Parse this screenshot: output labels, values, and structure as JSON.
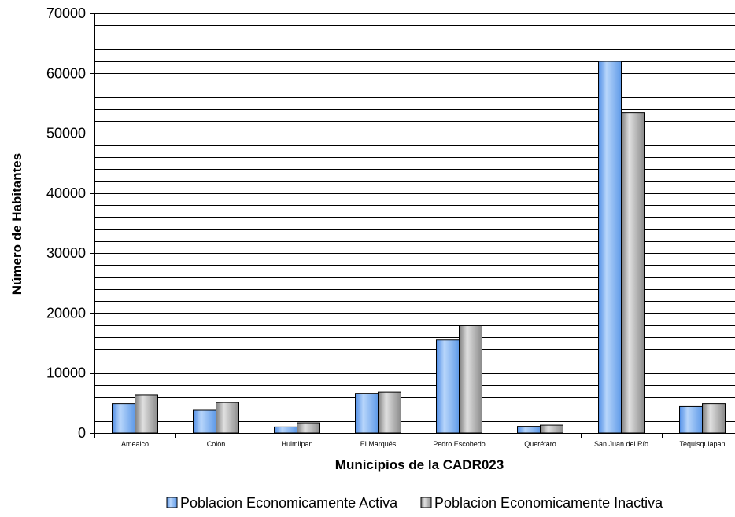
{
  "chart_data": {
    "type": "bar",
    "xlabel": "Municipios de la CADR023",
    "ylabel": "Número de Habitantes",
    "ylim": [
      0,
      70000
    ],
    "yticks": [
      "0",
      "10000",
      "20000",
      "30000",
      "40000",
      "50000",
      "60000",
      "70000"
    ],
    "grid": true,
    "legend_position": "bottom",
    "categories": [
      "Amealco",
      "Colón",
      "Huimilpan",
      "El Marqués",
      "Pedro Escobedo",
      "Querétaro",
      "San Juan del Río",
      "Tequisquiapan"
    ],
    "series": [
      {
        "name": "Poblacion Economicamente Activa",
        "color": "#7fb2f0",
        "values": [
          4900,
          3800,
          1000,
          6600,
          15500,
          1100,
          62000,
          4400
        ]
      },
      {
        "name": "Poblacion Economicamente Inactiva",
        "color": "#a6a6a6",
        "values": [
          6300,
          5100,
          1700,
          6800,
          17900,
          1300,
          53400,
          4900
        ]
      }
    ]
  }
}
